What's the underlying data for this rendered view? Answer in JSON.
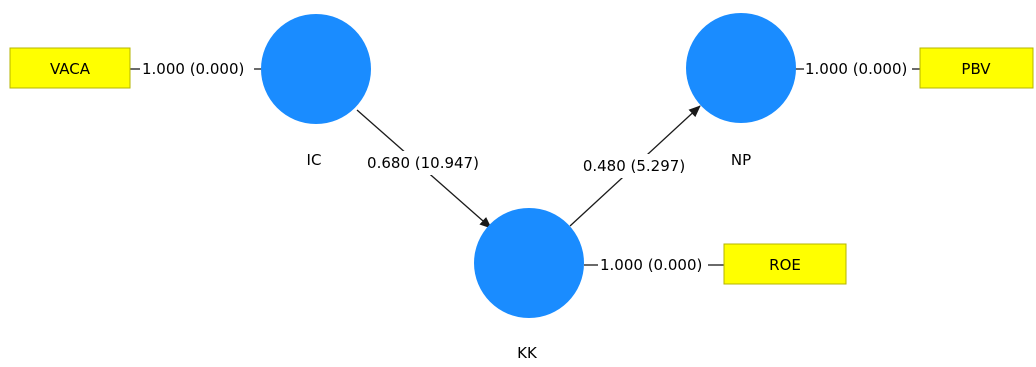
{
  "diagram": {
    "latent_variables": {
      "ic": {
        "label": "IC"
      },
      "kk": {
        "label": "KK"
      },
      "np": {
        "label": "NP"
      }
    },
    "indicators": {
      "vaca": {
        "label": "VACA"
      },
      "pbv": {
        "label": "PBV"
      },
      "roe": {
        "label": "ROE"
      }
    },
    "outer_loadings": {
      "vaca_ic": "1.000 (0.000)",
      "np_pbv": "1.000 (0.000)",
      "kk_roe": "1.000 (0.000)"
    },
    "path_coefficients": {
      "ic_kk": "0.680 (10.947)",
      "kk_np": "0.480 (5.297)"
    },
    "colors": {
      "latent_fill": "#1a8cff",
      "indicator_fill": "#ffff00",
      "line": "#1a1a1a"
    }
  }
}
